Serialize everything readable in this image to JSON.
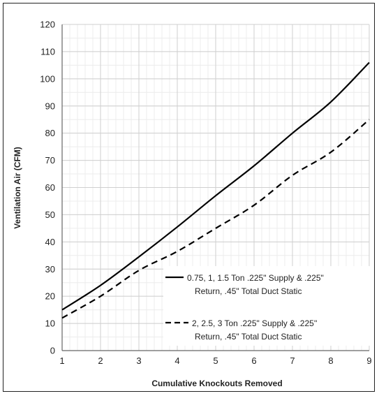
{
  "chart_data": {
    "type": "line",
    "xlabel": "Cumulative Knockouts Removed",
    "ylabel": "Ventilation Air (CFM)",
    "xlim": [
      1,
      9
    ],
    "ylim": [
      0,
      120
    ],
    "x_ticks": [
      "1",
      "2",
      "3",
      "4",
      "5",
      "6",
      "7",
      "8",
      "9"
    ],
    "y_ticks": [
      "0",
      "10",
      "20",
      "30",
      "40",
      "50",
      "60",
      "70",
      "80",
      "90",
      "100",
      "110",
      "120"
    ],
    "x_ticks_values": [
      1,
      2,
      3,
      4,
      5,
      6,
      7,
      8,
      9
    ],
    "y_ticks_values": [
      0,
      10,
      20,
      30,
      40,
      50,
      60,
      70,
      80,
      90,
      100,
      110,
      120
    ],
    "grid": {
      "major": true,
      "minor": true
    },
    "legend_position": "lower-right",
    "series": [
      {
        "name": "0.75, 1, 1.5 Ton .225\" Supply & .225\" Return, .45\" Total Duct Static",
        "legend_lines": [
          "0.75, 1, 1.5 Ton .225\" Supply & .225\"",
          "Return, .45\" Total Duct Static"
        ],
        "style": "solid",
        "color": "#000000",
        "x": [
          1,
          2,
          3,
          4,
          5,
          6,
          7,
          8,
          9
        ],
        "y": [
          15,
          24,
          34.5,
          45.5,
          57,
          68,
          80,
          91.5,
          106
        ]
      },
      {
        "name": "2, 2.5, 3 Ton .225\" Supply & .225'' Return, .45\" Total Duct Static",
        "legend_lines": [
          "2, 2.5, 3 Ton .225\" Supply & .225''",
          "Return, .45\" Total Duct Static"
        ],
        "style": "dashed",
        "color": "#000000",
        "x": [
          1,
          2,
          3,
          4,
          5,
          6,
          7,
          8,
          9
        ],
        "y": [
          12,
          20,
          29.5,
          36.5,
          45,
          53.5,
          64.5,
          73,
          85
        ]
      }
    ]
  }
}
